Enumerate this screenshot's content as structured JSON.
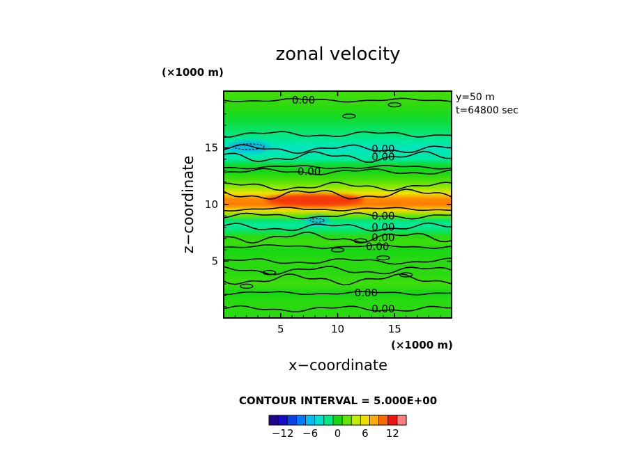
{
  "chart_data": {
    "type": "heatmap",
    "title": "zonal velocity",
    "xlabel": "x−coordinate",
    "ylabel": "z−coordinate",
    "x_scale_label": "(×1000 m)",
    "y_scale_label": "(×1000 m)",
    "xlim": [
      0,
      20
    ],
    "ylim": [
      0,
      20
    ],
    "x_ticks": [
      5,
      10,
      15
    ],
    "x_tick_labels": [
      "5",
      "10",
      "15"
    ],
    "y_ticks": [
      5,
      10,
      15
    ],
    "y_tick_labels": [
      "5",
      "10",
      "15"
    ],
    "info_lines": [
      "y=50  m",
      "t=64800 sec"
    ],
    "contour_interval_text": "CONTOUR INTERVAL = 5.000E+00",
    "contour_levels": [
      -5,
      0,
      5
    ],
    "contour_label_text": "0.00",
    "contour_labels": [
      {
        "x": 7.0,
        "z": 19.2
      },
      {
        "x": 14.0,
        "z": 14.9
      },
      {
        "x": 14.0,
        "z": 14.2
      },
      {
        "x": 7.5,
        "z": 12.9
      },
      {
        "x": 14.0,
        "z": 9.0
      },
      {
        "x": 14.0,
        "z": 8.0
      },
      {
        "x": 14.0,
        "z": 7.1
      },
      {
        "x": 13.5,
        "z": 6.3
      },
      {
        "x": 12.5,
        "z": 2.2
      },
      {
        "x": 14.0,
        "z": 0.8
      }
    ],
    "bands": [
      {
        "z": 19.5,
        "value": 1.0
      },
      {
        "z": 18.5,
        "value": 0.5
      },
      {
        "z": 17.5,
        "value": -0.5
      },
      {
        "z": 16.5,
        "value": -1.5
      },
      {
        "z": 15.5,
        "value": -2.5
      },
      {
        "z": 15.0,
        "value": -3.5
      },
      {
        "z": 14.5,
        "value": -3.0
      },
      {
        "z": 14.0,
        "value": -2.5
      },
      {
        "z": 13.5,
        "value": -0.5
      },
      {
        "z": 12.9,
        "value": 0.0
      },
      {
        "z": 12.3,
        "value": 1.0
      },
      {
        "z": 11.5,
        "value": 3.0
      },
      {
        "z": 11.0,
        "value": 5.5
      },
      {
        "z": 10.5,
        "value": 9.0
      },
      {
        "z": 10.0,
        "value": 9.5
      },
      {
        "z": 9.5,
        "value": 6.0
      },
      {
        "z": 9.0,
        "value": 2.0
      },
      {
        "z": 8.6,
        "value": -1.5
      },
      {
        "z": 8.2,
        "value": -2.5
      },
      {
        "z": 7.7,
        "value": -1.5
      },
      {
        "z": 7.2,
        "value": 0.5
      },
      {
        "z": 6.6,
        "value": 1.0
      },
      {
        "z": 6.0,
        "value": 0.0
      },
      {
        "z": 5.0,
        "value": 0.5
      },
      {
        "z": 4.0,
        "value": 0.5
      },
      {
        "z": 3.0,
        "value": 1.0
      },
      {
        "z": 2.2,
        "value": 0.0
      },
      {
        "z": 1.5,
        "value": 0.5
      },
      {
        "z": 0.8,
        "value": 0.5
      },
      {
        "z": 0.2,
        "value": 0.5
      }
    ],
    "max_region": {
      "x": 8.0,
      "z": 10.4,
      "value": 11.5
    },
    "min_regions": [
      {
        "x": 2.2,
        "z": 15.1,
        "value": -5.5
      },
      {
        "x": 8.2,
        "z": 8.6,
        "value": -5.0
      }
    ],
    "colorbar": {
      "vmin": -15,
      "vmax": 15,
      "step": 2,
      "tick_values": [
        -12,
        -6,
        0,
        6,
        12
      ],
      "tick_labels": [
        "−12",
        "−6",
        "0",
        "6",
        "12"
      ]
    }
  }
}
